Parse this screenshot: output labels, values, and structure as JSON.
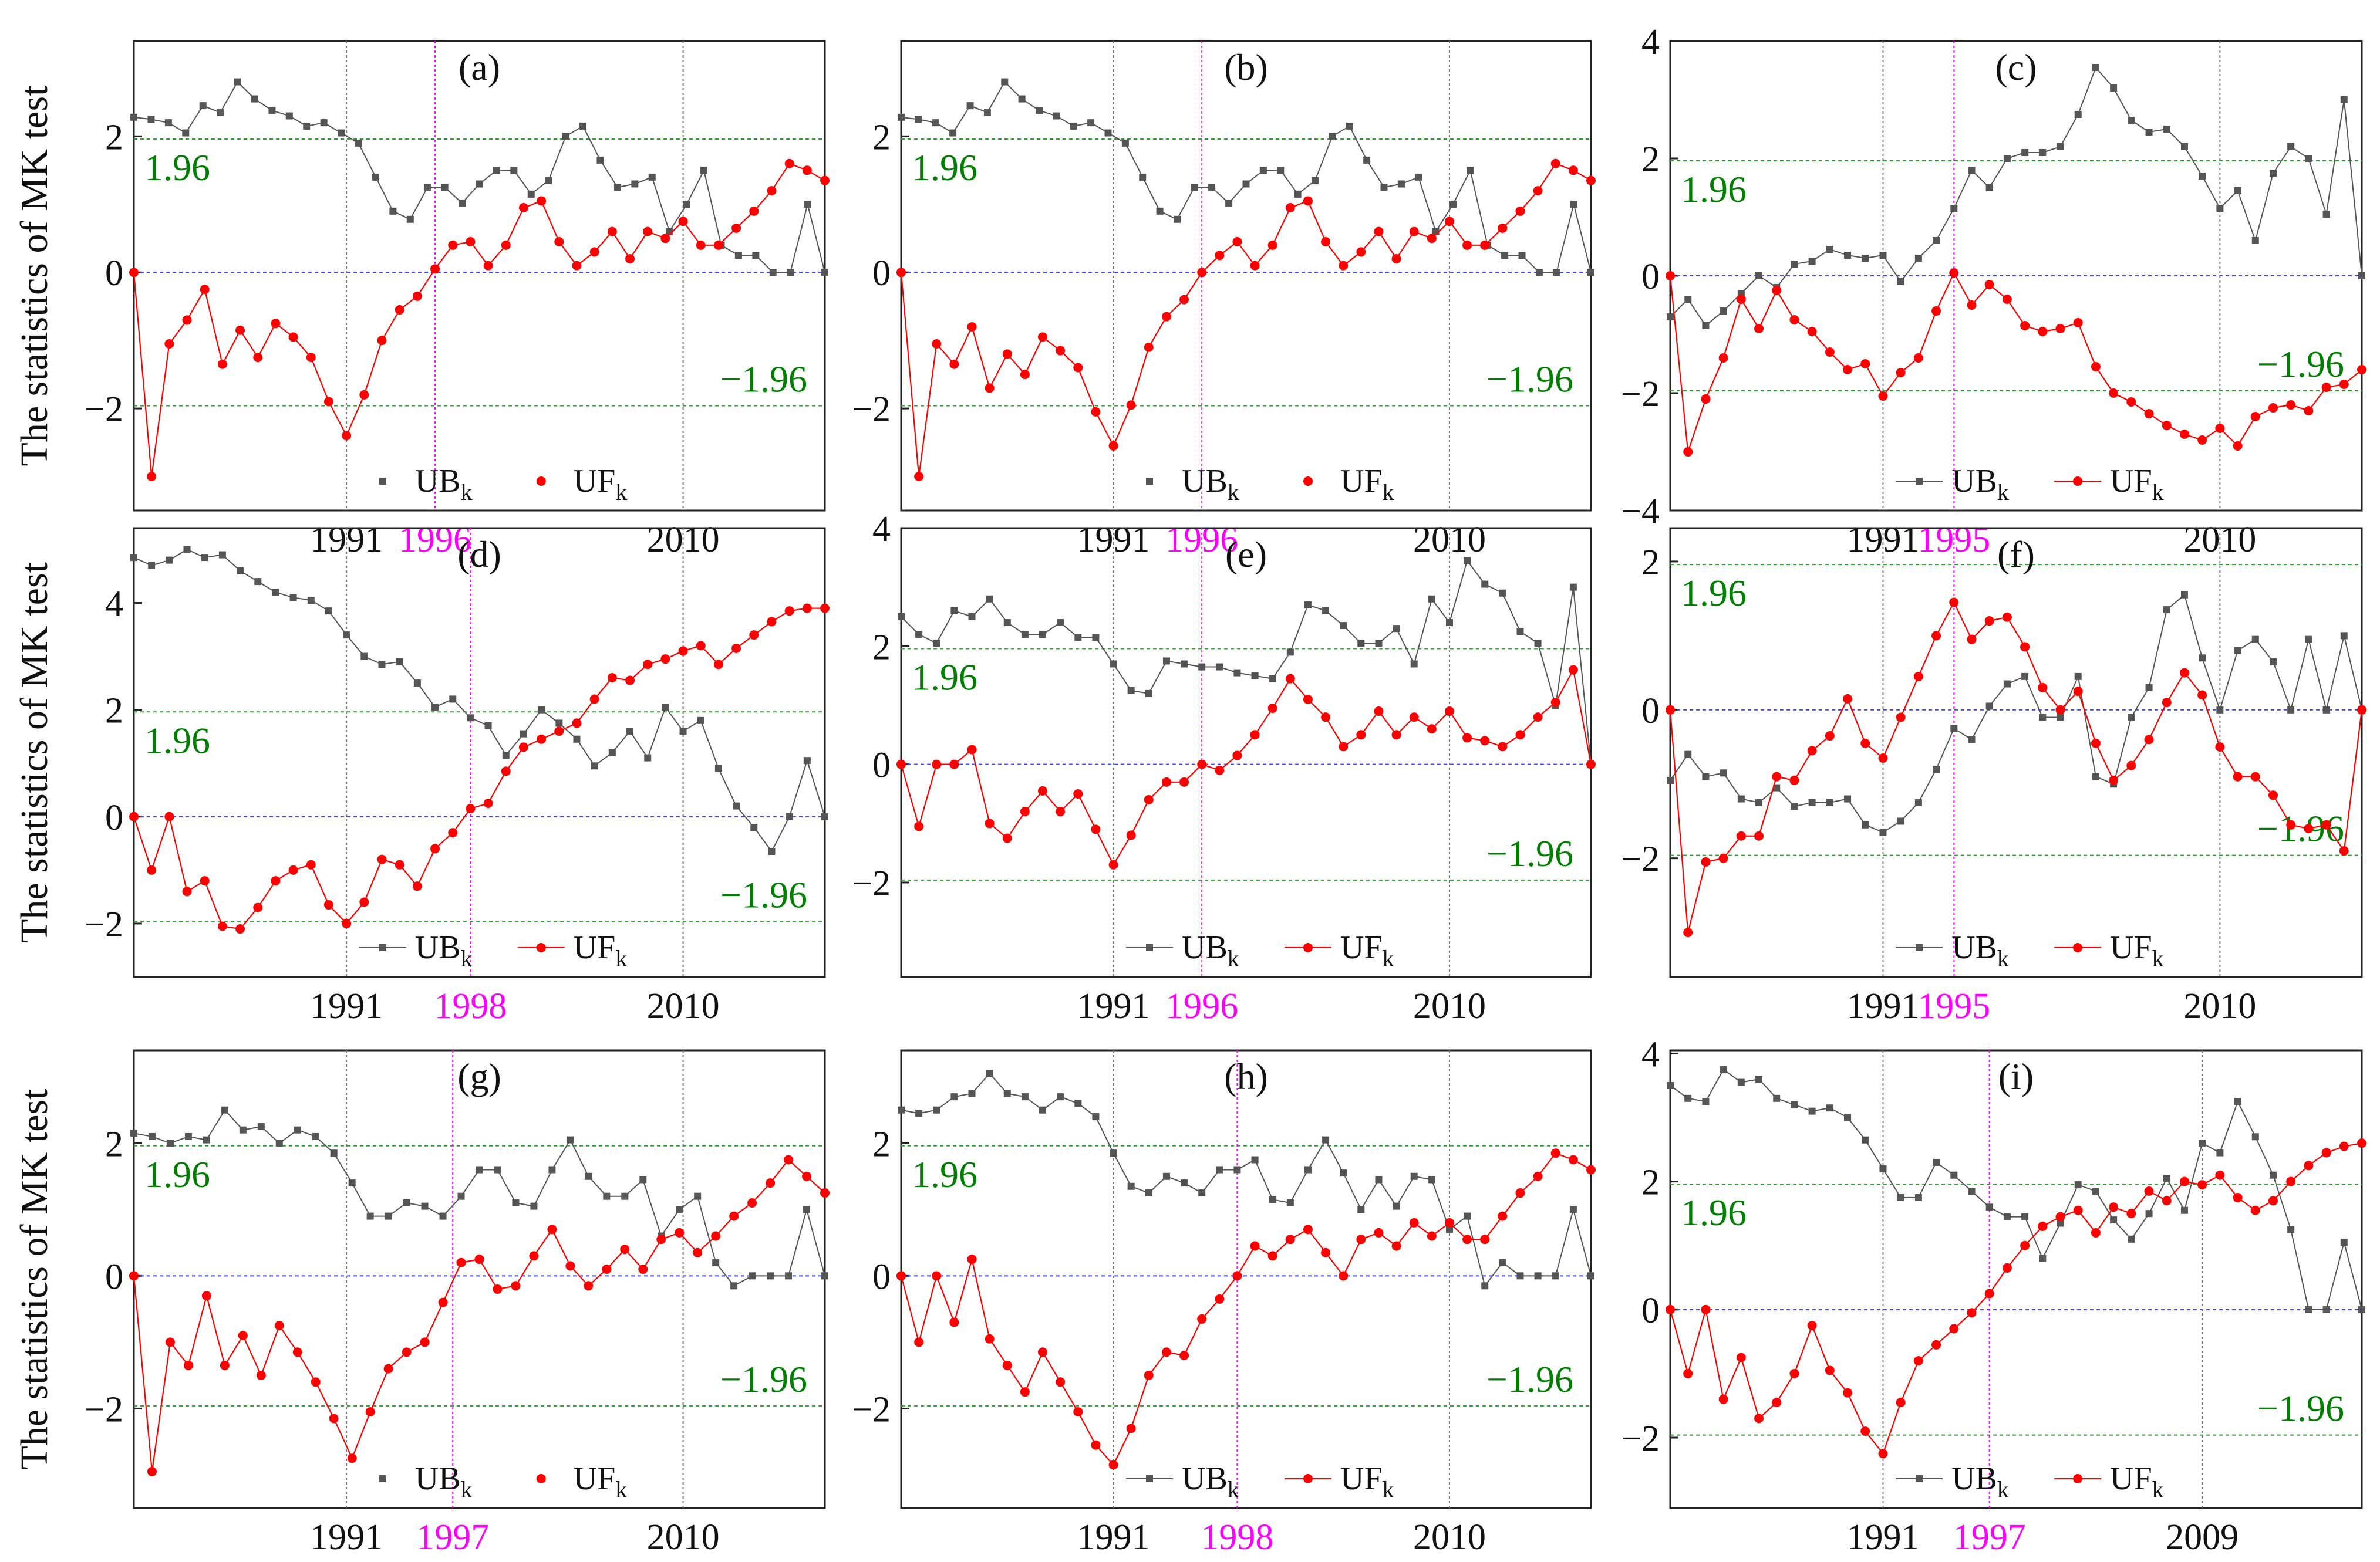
{
  "figure": {
    "ylabel": "The statistics of MK test",
    "sig_label_pos": "1.96",
    "sig_label_neg": "−1.96",
    "colors": {
      "ub": "#555555",
      "uf": "#ff0000",
      "sig": "#2ca02c",
      "zero": "#4040ff",
      "change": "#ff00ff",
      "vline": "#777777",
      "text_sig": "#008000",
      "text_change": "#ff00ff"
    }
  },
  "chart_data": [
    {
      "panel": "(a)",
      "type": "line",
      "years": [
        1979,
        2018
      ],
      "ylim": [
        -3.5,
        3.4
      ],
      "yticks": [
        -2,
        0,
        2
      ],
      "xticks": [
        "1991",
        "1996",
        "2010"
      ],
      "change_year": "1996",
      "legend": {
        "ub": "UB",
        "uf": "UF",
        "sub": "k",
        "lines": false
      },
      "series": [
        {
          "name": "UB",
          "values": [
            2.28,
            2.25,
            2.2,
            2.05,
            2.45,
            2.35,
            2.8,
            2.55,
            2.38,
            2.3,
            2.15,
            2.2,
            2.05,
            1.9,
            1.4,
            0.9,
            0.78,
            1.25,
            1.25,
            1.02,
            1.3,
            1.5,
            1.5,
            1.15,
            1.35,
            2.0,
            2.15,
            1.65,
            1.25,
            1.3,
            1.4,
            0.6,
            1.0,
            1.5,
            0.4,
            0.25,
            0.25,
            0.0,
            0.0,
            1.0,
            0.0
          ]
        },
        {
          "name": "UF",
          "values": [
            0.0,
            -3.0,
            -1.05,
            -0.7,
            -0.25,
            -1.35,
            -0.85,
            -1.25,
            -0.75,
            -0.95,
            -1.25,
            -1.9,
            -2.4,
            -1.8,
            -1.0,
            -0.55,
            -0.35,
            0.05,
            0.4,
            0.45,
            0.1,
            0.4,
            0.95,
            1.05,
            0.45,
            0.1,
            0.3,
            0.6,
            0.2,
            0.6,
            0.5,
            0.75,
            0.4,
            0.4,
            0.65,
            0.9,
            1.2,
            1.6,
            1.5,
            1.35
          ]
        }
      ]
    },
    {
      "panel": "(b)",
      "type": "line",
      "years": [
        1979,
        2018
      ],
      "ylim": [
        -3.5,
        3.4
      ],
      "yticks": [
        -2,
        0,
        2
      ],
      "xticks": [
        "1991",
        "1996",
        "2010"
      ],
      "change_year": "1996",
      "legend": {
        "ub": "UB",
        "uf": "UF",
        "sub": "k",
        "lines": false
      },
      "series": [
        {
          "name": "UB",
          "values": [
            2.28,
            2.25,
            2.2,
            2.05,
            2.45,
            2.35,
            2.8,
            2.55,
            2.38,
            2.3,
            2.15,
            2.2,
            2.05,
            1.9,
            1.4,
            0.9,
            0.78,
            1.25,
            1.25,
            1.02,
            1.3,
            1.5,
            1.5,
            1.15,
            1.35,
            2.0,
            2.15,
            1.65,
            1.25,
            1.3,
            1.4,
            0.6,
            1.0,
            1.5,
            0.4,
            0.25,
            0.25,
            0.0,
            0.0,
            1.0,
            0.0
          ]
        },
        {
          "name": "UF",
          "values": [
            0.0,
            -3.0,
            -1.05,
            -1.35,
            -0.8,
            -1.7,
            -1.2,
            -1.5,
            -0.95,
            -1.15,
            -1.4,
            -2.05,
            -2.55,
            -1.95,
            -1.1,
            -0.65,
            -0.4,
            0.0,
            0.25,
            0.45,
            0.1,
            0.4,
            0.95,
            1.05,
            0.45,
            0.1,
            0.3,
            0.6,
            0.2,
            0.6,
            0.5,
            0.75,
            0.4,
            0.4,
            0.65,
            0.9,
            1.2,
            1.6,
            1.5,
            1.35
          ]
        }
      ]
    },
    {
      "panel": "(c)",
      "type": "line",
      "years": [
        1979,
        2018
      ],
      "ylim": [
        -4,
        4
      ],
      "yticks": [
        -4,
        -2,
        0,
        2,
        4
      ],
      "xticks": [
        "1991",
        "1995",
        "2010"
      ],
      "change_year": "1995",
      "legend": {
        "ub": "UB",
        "uf": "UF",
        "sub": "k",
        "lines": true
      },
      "series": [
        {
          "name": "UB",
          "values": [
            -0.7,
            -0.4,
            -0.85,
            -0.6,
            -0.3,
            0.0,
            -0.2,
            0.2,
            0.25,
            0.45,
            0.35,
            0.3,
            0.35,
            -0.1,
            0.3,
            0.6,
            1.15,
            1.8,
            1.5,
            2.0,
            2.1,
            2.1,
            2.2,
            2.75,
            3.55,
            3.2,
            2.65,
            2.45,
            2.5,
            2.2,
            1.7,
            1.15,
            1.45,
            0.6,
            1.75,
            2.2,
            2.0,
            1.05,
            3.0,
            0.0
          ]
        },
        {
          "name": "UF",
          "values": [
            0.0,
            -3.0,
            -2.1,
            -1.4,
            -0.4,
            -0.9,
            -0.25,
            -0.75,
            -0.95,
            -1.3,
            -1.6,
            -1.5,
            -2.05,
            -1.65,
            -1.4,
            -0.6,
            0.05,
            -0.5,
            -0.15,
            -0.4,
            -0.85,
            -0.95,
            -0.9,
            -0.8,
            -1.55,
            -2.0,
            -2.15,
            -2.35,
            -2.55,
            -2.7,
            -2.8,
            -2.6,
            -2.9,
            -2.4,
            -2.25,
            -2.2,
            -2.3,
            -1.9,
            -1.85,
            -1.6
          ]
        }
      ]
    },
    {
      "panel": "(d)",
      "type": "line",
      "years": [
        1979,
        2018
      ],
      "ylim": [
        -3,
        5.4
      ],
      "yticks": [
        -2,
        0,
        2,
        4
      ],
      "xticks": [
        "1991",
        "1998",
        "2010"
      ],
      "change_year": "1998",
      "legend": {
        "ub": "UB",
        "uf": "UF",
        "sub": "k",
        "lines": true
      },
      "series": [
        {
          "name": "UB",
          "values": [
            4.85,
            4.7,
            4.8,
            5.0,
            4.85,
            4.9,
            4.6,
            4.4,
            4.2,
            4.1,
            4.05,
            3.85,
            3.4,
            3.0,
            2.85,
            2.9,
            2.5,
            2.05,
            2.2,
            1.85,
            1.7,
            1.15,
            1.55,
            2.0,
            1.75,
            1.45,
            0.95,
            1.2,
            1.6,
            1.1,
            2.05,
            1.6,
            1.8,
            0.9,
            0.2,
            -0.2,
            -0.65,
            0.0,
            1.05,
            0.0
          ]
        },
        {
          "name": "UF",
          "values": [
            0.0,
            -1.0,
            0.0,
            -1.4,
            -1.2,
            -2.05,
            -2.1,
            -1.7,
            -1.2,
            -1.0,
            -0.9,
            -1.65,
            -2.0,
            -1.6,
            -0.8,
            -0.9,
            -1.3,
            -0.6,
            -0.3,
            0.15,
            0.25,
            0.85,
            1.3,
            1.45,
            1.6,
            1.75,
            2.2,
            2.6,
            2.55,
            2.85,
            2.95,
            3.1,
            3.2,
            2.85,
            3.15,
            3.4,
            3.65,
            3.85,
            3.9,
            3.9
          ]
        }
      ]
    },
    {
      "panel": "(e)",
      "type": "line",
      "years": [
        1979,
        2018
      ],
      "ylim": [
        -3.6,
        4
      ],
      "yticks": [
        -2,
        0,
        2,
        4
      ],
      "xticks": [
        "1991",
        "1996",
        "2010"
      ],
      "change_year": "1996",
      "legend": {
        "ub": "UB",
        "uf": "UF",
        "sub": "k",
        "lines": true
      },
      "series": [
        {
          "name": "UB",
          "values": [
            2.5,
            2.2,
            2.05,
            2.6,
            2.5,
            2.8,
            2.4,
            2.2,
            2.2,
            2.4,
            2.15,
            2.15,
            1.7,
            1.25,
            1.2,
            1.75,
            1.7,
            1.65,
            1.65,
            1.55,
            1.5,
            1.45,
            1.9,
            2.7,
            2.6,
            2.35,
            2.05,
            2.05,
            2.3,
            1.7,
            2.8,
            2.4,
            3.45,
            3.05,
            2.9,
            2.25,
            2.05,
            1.0,
            3.0,
            0.0
          ]
        },
        {
          "name": "UF",
          "values": [
            0.0,
            -1.05,
            0.0,
            0.0,
            0.25,
            -1.0,
            -1.25,
            -0.8,
            -0.45,
            -0.8,
            -0.5,
            -1.1,
            -1.7,
            -1.2,
            -0.6,
            -0.3,
            -0.3,
            0.0,
            -0.1,
            0.15,
            0.5,
            0.95,
            1.45,
            1.1,
            0.8,
            0.3,
            0.5,
            0.9,
            0.5,
            0.8,
            0.6,
            0.9,
            0.45,
            0.4,
            0.3,
            0.5,
            0.8,
            1.05,
            1.6,
            0.0
          ]
        }
      ]
    },
    {
      "panel": "(f)",
      "type": "line",
      "years": [
        1979,
        2018
      ],
      "ylim": [
        -3.6,
        2.45
      ],
      "yticks": [
        -2,
        0,
        2
      ],
      "xticks": [
        "1991",
        "1995",
        "2010"
      ],
      "change_year": "1995",
      "legend": {
        "ub": "UB",
        "uf": "UF",
        "sub": "k",
        "lines": true
      },
      "series": [
        {
          "name": "UB",
          "values": [
            -0.95,
            -0.6,
            -0.9,
            -0.85,
            -1.2,
            -1.25,
            -1.05,
            -1.3,
            -1.25,
            -1.25,
            -1.2,
            -1.55,
            -1.65,
            -1.5,
            -1.25,
            -0.8,
            -0.25,
            -0.4,
            0.05,
            0.35,
            0.45,
            -0.1,
            -0.1,
            0.45,
            -0.9,
            -1.0,
            -0.1,
            0.3,
            1.35,
            1.55,
            0.7,
            0.0,
            0.8,
            0.95,
            0.65,
            0.0,
            0.95,
            0.0,
            1.0,
            0.0
          ]
        },
        {
          "name": "UF",
          "values": [
            0.0,
            -3.0,
            -2.05,
            -2.0,
            -1.7,
            -1.7,
            -0.9,
            -0.95,
            -0.55,
            -0.35,
            0.15,
            -0.45,
            -0.65,
            -0.1,
            0.45,
            1.0,
            1.45,
            0.95,
            1.2,
            1.25,
            0.85,
            0.3,
            0.0,
            0.25,
            -0.45,
            -0.95,
            -0.75,
            -0.4,
            0.1,
            0.5,
            0.2,
            -0.5,
            -0.9,
            -0.9,
            -1.15,
            -1.55,
            -1.6,
            -1.55,
            -1.9,
            0.0
          ]
        }
      ]
    },
    {
      "panel": "(g)",
      "type": "line",
      "years": [
        1979,
        2018
      ],
      "ylim": [
        -3.5,
        3.4
      ],
      "yticks": [
        -2,
        0,
        2
      ],
      "xticks": [
        "1991",
        "1997",
        "2010"
      ],
      "change_year": "1997",
      "legend": {
        "ub": "UB",
        "uf": "UF",
        "sub": "k",
        "lines": false
      },
      "series": [
        {
          "name": "UB",
          "values": [
            2.15,
            2.1,
            2.0,
            2.1,
            2.05,
            2.5,
            2.2,
            2.25,
            2.0,
            2.2,
            2.1,
            1.85,
            1.4,
            0.9,
            0.9,
            1.1,
            1.05,
            0.9,
            1.2,
            1.6,
            1.6,
            1.1,
            1.05,
            1.6,
            2.05,
            1.5,
            1.2,
            1.2,
            1.45,
            0.6,
            1.0,
            1.2,
            0.2,
            -0.15,
            0.0,
            0.0,
            0.0,
            1.0,
            0.0
          ]
        },
        {
          "name": "UF",
          "values": [
            0.0,
            -2.95,
            -1.0,
            -1.35,
            -0.3,
            -1.35,
            -0.9,
            -1.5,
            -0.75,
            -1.15,
            -1.6,
            -2.15,
            -2.75,
            -2.05,
            -1.4,
            -1.15,
            -1.0,
            -0.4,
            0.2,
            0.25,
            -0.2,
            -0.15,
            0.3,
            0.7,
            0.15,
            -0.15,
            0.1,
            0.4,
            0.1,
            0.55,
            0.65,
            0.35,
            0.6,
            0.9,
            1.1,
            1.4,
            1.75,
            1.5,
            1.25
          ]
        }
      ]
    },
    {
      "panel": "(h)",
      "type": "line",
      "years": [
        1979,
        2018
      ],
      "ylim": [
        -3.5,
        3.4
      ],
      "yticks": [
        -2,
        0,
        2
      ],
      "xticks": [
        "1991",
        "1998",
        "2010"
      ],
      "change_year": "1998",
      "legend": {
        "ub": "UB",
        "uf": "UF",
        "sub": "k",
        "lines": true
      },
      "series": [
        {
          "name": "UB",
          "values": [
            2.5,
            2.45,
            2.5,
            2.7,
            2.75,
            3.05,
            2.75,
            2.7,
            2.5,
            2.7,
            2.6,
            2.4,
            1.85,
            1.35,
            1.25,
            1.5,
            1.4,
            1.25,
            1.6,
            1.6,
            1.75,
            1.15,
            1.1,
            1.6,
            2.05,
            1.55,
            1.0,
            1.45,
            1.05,
            1.5,
            1.45,
            0.7,
            0.9,
            -0.15,
            0.2,
            0.0,
            0.0,
            0.0,
            1.0,
            0.0
          ]
        },
        {
          "name": "UF",
          "values": [
            0.0,
            -1.0,
            0.0,
            -0.7,
            0.25,
            -0.95,
            -1.35,
            -1.75,
            -1.15,
            -1.6,
            -2.05,
            -2.55,
            -2.85,
            -2.3,
            -1.5,
            -1.15,
            -1.2,
            -0.65,
            -0.35,
            0.0,
            0.45,
            0.3,
            0.55,
            0.7,
            0.35,
            0.0,
            0.55,
            0.65,
            0.45,
            0.8,
            0.6,
            0.8,
            0.55,
            0.55,
            0.9,
            1.25,
            1.5,
            1.85,
            1.75,
            1.6
          ]
        }
      ]
    },
    {
      "panel": "(i)",
      "type": "line",
      "years": [
        1979,
        2018
      ],
      "ylim": [
        -3.1,
        4.05
      ],
      "yticks": [
        -2,
        0,
        2,
        4
      ],
      "xticks": [
        "1991",
        "1997",
        "2009"
      ],
      "change_year": "1997",
      "legend": {
        "ub": "UB",
        "uf": "UF",
        "sub": "k",
        "lines": true
      },
      "series": [
        {
          "name": "UB",
          "values": [
            3.5,
            3.3,
            3.25,
            3.75,
            3.55,
            3.6,
            3.3,
            3.2,
            3.1,
            3.15,
            3.0,
            2.65,
            2.2,
            1.75,
            1.75,
            2.3,
            2.1,
            1.85,
            1.6,
            1.45,
            1.45,
            0.8,
            1.35,
            1.95,
            1.85,
            1.4,
            1.1,
            1.5,
            2.05,
            1.55,
            2.6,
            2.45,
            3.25,
            2.7,
            2.1,
            1.25,
            0.0,
            0.0,
            1.05,
            0.0
          ]
        },
        {
          "name": "UF",
          "values": [
            0.0,
            -1.0,
            0.0,
            -1.4,
            -0.75,
            -1.7,
            -1.45,
            -1.0,
            -0.25,
            -0.95,
            -1.3,
            -1.9,
            -2.25,
            -1.45,
            -0.8,
            -0.55,
            -0.3,
            -0.05,
            0.25,
            0.65,
            1.0,
            1.3,
            1.45,
            1.55,
            1.2,
            1.6,
            1.5,
            1.85,
            1.7,
            2.0,
            1.95,
            2.1,
            1.75,
            1.55,
            1.7,
            2.0,
            2.25,
            2.45,
            2.55,
            2.6
          ]
        }
      ]
    }
  ]
}
